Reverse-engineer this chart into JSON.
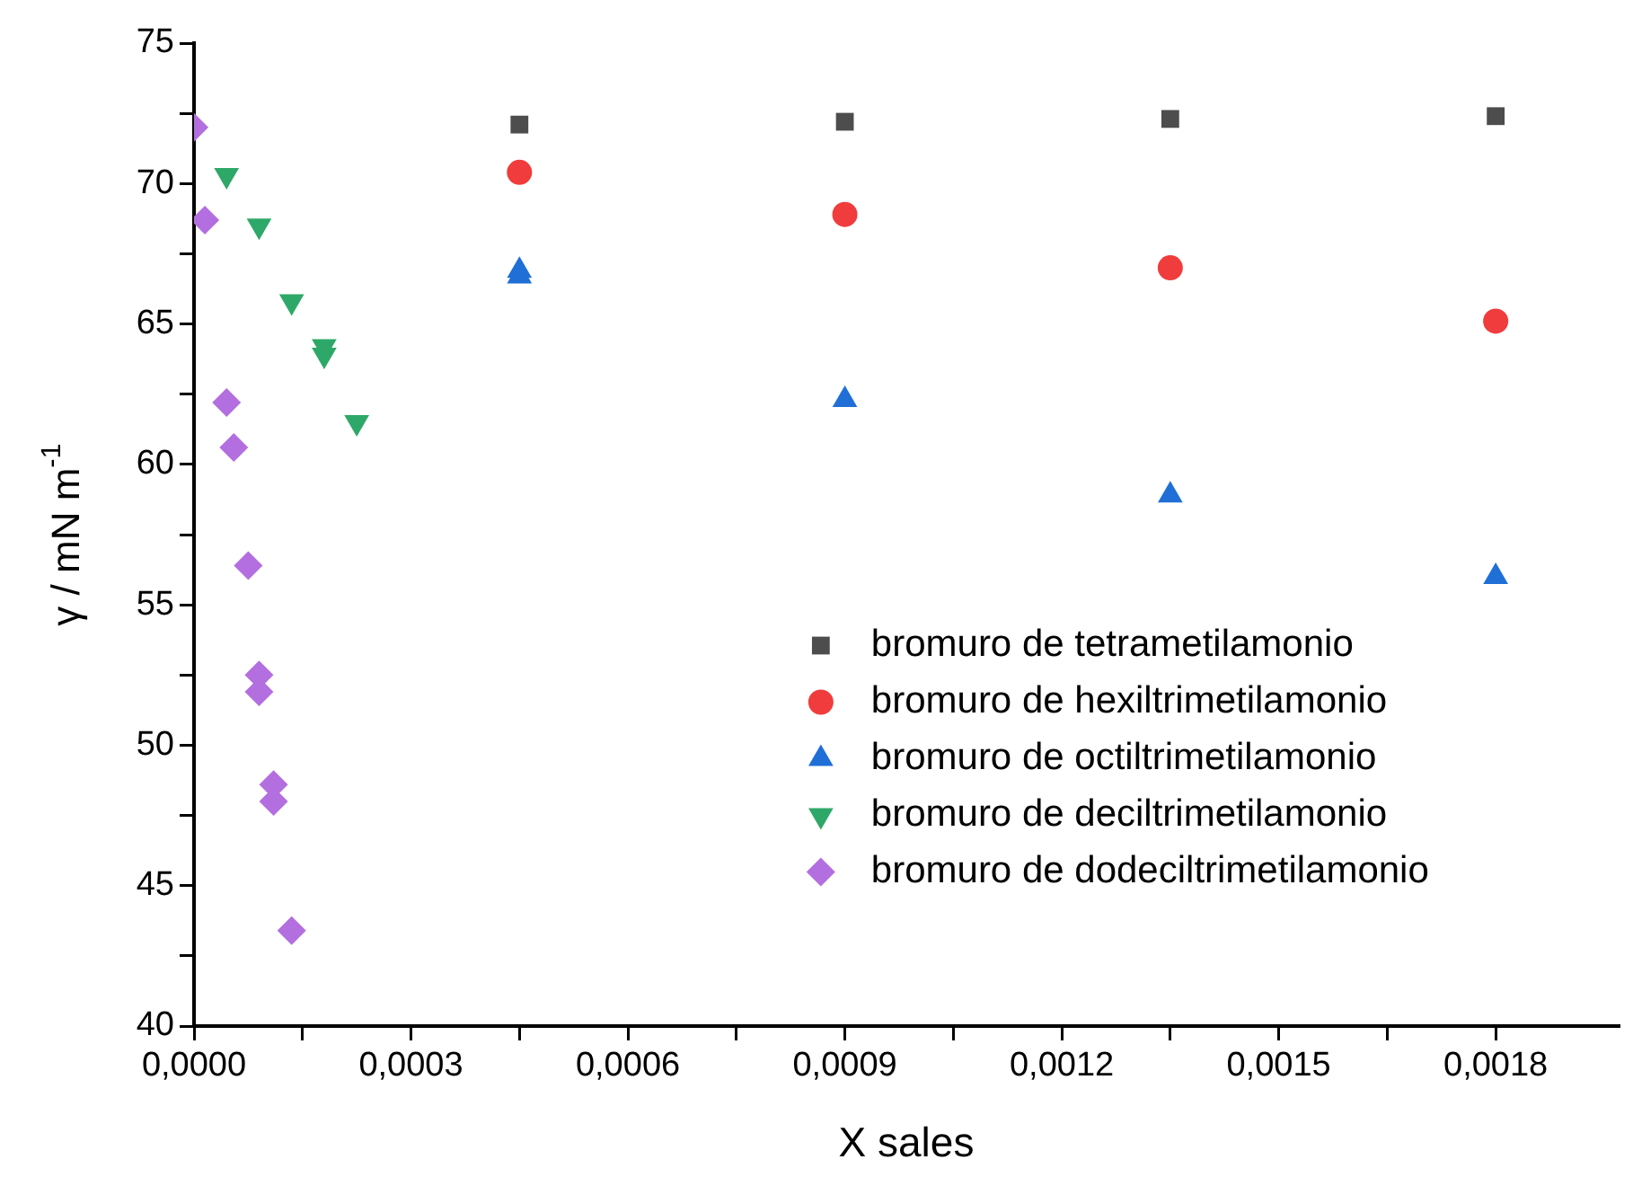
{
  "chart_data": {
    "type": "scatter",
    "xlabel": "X sales",
    "ylabel": "γ / mN m$^{-1}$",
    "xlim": [
      0,
      0.00197
    ],
    "ylim": [
      40,
      75
    ],
    "xticks": [
      {
        "value": 0,
        "label": "0,0000"
      },
      {
        "value": 0.00015,
        "label": null
      },
      {
        "value": 0.0003,
        "label": "0,0003"
      },
      {
        "value": 0.00045,
        "label": null
      },
      {
        "value": 0.0006,
        "label": "0,0006"
      },
      {
        "value": 0.00075,
        "label": null
      },
      {
        "value": 0.0009,
        "label": "0,0009"
      },
      {
        "value": 0.00105,
        "label": null
      },
      {
        "value": 0.0012,
        "label": "0,0012"
      },
      {
        "value": 0.00135,
        "label": null
      },
      {
        "value": 0.0015,
        "label": "0,0015"
      },
      {
        "value": 0.00165,
        "label": null
      },
      {
        "value": 0.0018,
        "label": "0,0018"
      }
    ],
    "yticks": [
      40,
      {
        "value": 42.5,
        "label": null
      },
      45,
      {
        "value": 47.5,
        "label": null
      },
      50,
      {
        "value": 52.5,
        "label": null
      },
      55,
      {
        "value": 57.5,
        "label": null
      },
      60,
      {
        "value": 62.5,
        "label": null
      },
      65,
      {
        "value": 67.5,
        "label": null
      },
      70,
      {
        "value": 72.5,
        "label": null
      },
      75
    ],
    "grid": false,
    "legend": "bottom right",
    "series": [
      {
        "name": "bromuro de tetrametilamonio",
        "color": "#4d4d4d",
        "marker": "square",
        "x": [
          0.00045,
          0.0009,
          0.00135,
          0.0018
        ],
        "values": [
          72.1,
          72.2,
          72.3,
          72.4
        ]
      },
      {
        "name": "bromuro de hexiltrimetilamonio",
        "color": "#f03c3c",
        "marker": "circle",
        "x": [
          0.00045,
          0.0009,
          0.00135,
          0.0018
        ],
        "values": [
          70.4,
          68.9,
          67.0,
          65.1
        ]
      },
      {
        "name": "bromuro de octiltrimetilamonio",
        "color": "#1f6fd6",
        "marker": "triangle",
        "x": [
          0.00045,
          0.00045,
          0.0009,
          0.00135,
          0.0018
        ],
        "values": [
          66.9,
          66.7,
          62.3,
          58.9,
          56.0
        ]
      },
      {
        "name": "bromuro de deciltrimetilamonio",
        "color": "#2ea868",
        "marker": "triangle-down",
        "x": [
          4.5e-05,
          9e-05,
          0.000135,
          0.00018,
          0.00018,
          0.000225
        ],
        "values": [
          70.3,
          68.5,
          65.8,
          64.2,
          63.9,
          61.5
        ]
      },
      {
        "name": "bromuro de dodeciltrimetilamonio",
        "color": "#b36ee0",
        "marker": "diamond",
        "x": [
          0,
          1.5e-05,
          4.5e-05,
          5.5e-05,
          7.5e-05,
          9e-05,
          9e-05,
          0.00011,
          0.00011,
          0.000135
        ],
        "values": [
          72,
          68.7,
          62.2,
          60.6,
          56.4,
          52.5,
          51.9,
          48.6,
          48.0,
          43.4
        ]
      }
    ]
  }
}
